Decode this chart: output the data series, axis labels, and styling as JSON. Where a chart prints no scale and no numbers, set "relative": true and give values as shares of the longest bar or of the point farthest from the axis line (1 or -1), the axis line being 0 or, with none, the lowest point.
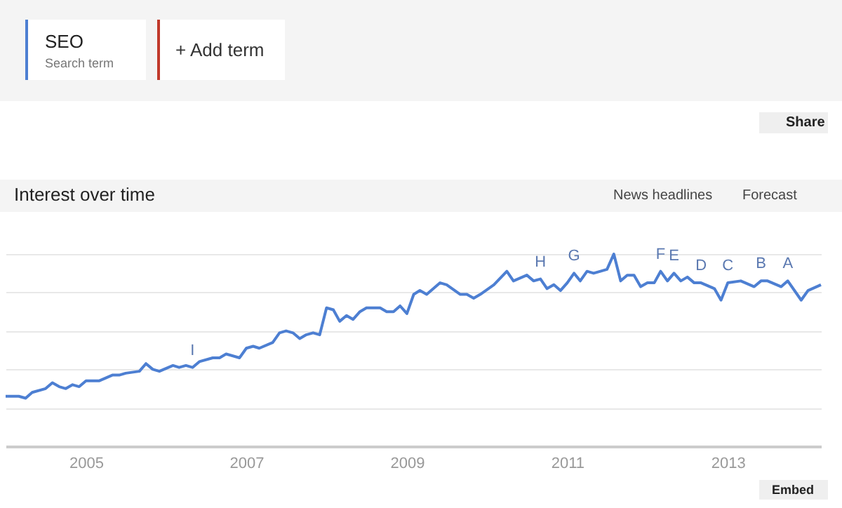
{
  "chart_data": {
    "type": "line",
    "title": "Interest over time",
    "relative": true,
    "legend": "top left",
    "legend_title": "Search term",
    "grid": "y",
    "xlim": [
      "2004-01",
      "2014-03"
    ],
    "xticks": [
      "2005",
      "2007",
      "2009",
      "2011",
      "2013"
    ],
    "x": [
      "2004-01",
      "2004-03",
      "2004-04",
      "2004-05",
      "2004-07",
      "2004-08",
      "2004-09",
      "2004-10",
      "2004-11",
      "2004-12",
      "2005-01",
      "2005-03",
      "2005-05",
      "2005-06",
      "2005-07",
      "2005-09",
      "2005-10",
      "2005-11",
      "2005-12",
      "2006-02",
      "2006-03",
      "2006-04",
      "2006-05",
      "2006-06",
      "2006-08",
      "2006-09",
      "2006-10",
      "2006-12",
      "2007-01",
      "2007-02",
      "2007-03",
      "2007-05",
      "2007-06",
      "2007-07",
      "2007-08",
      "2007-09",
      "2007-10",
      "2007-11",
      "2007-12",
      "2008-01",
      "2008-02",
      "2008-03",
      "2008-04",
      "2008-05",
      "2008-06",
      "2008-07",
      "2008-09",
      "2008-10",
      "2008-11",
      "2008-12",
      "2009-01",
      "2009-02",
      "2009-03",
      "2009-04",
      "2009-06",
      "2009-07",
      "2009-09",
      "2009-10",
      "2009-11",
      "2009-12",
      "2010-02",
      "2010-04",
      "2010-05",
      "2010-07",
      "2010-08",
      "2010-09",
      "2010-10",
      "2010-11",
      "2010-12",
      "2011-01",
      "2011-02",
      "2011-03",
      "2011-04",
      "2011-05",
      "2011-06",
      "2011-07",
      "2011-08",
      "2011-09",
      "2011-10",
      "2011-11",
      "2011-12",
      "2012-01",
      "2012-02",
      "2012-03",
      "2012-04",
      "2012-05",
      "2012-06",
      "2012-07",
      "2012-08",
      "2012-09",
      "2012-11",
      "2012-12",
      "2013-01",
      "2013-03",
      "2013-05",
      "2013-06",
      "2013-07",
      "2013-09",
      "2013-10",
      "2013-12",
      "2014-01",
      "2014-03"
    ],
    "series": [
      {
        "name": "SEO",
        "color": "#4d7fd2",
        "values": [
          0.26,
          0.26,
          0.25,
          0.28,
          0.3,
          0.33,
          0.31,
          0.3,
          0.32,
          0.31,
          0.34,
          0.34,
          0.37,
          0.37,
          0.38,
          0.39,
          0.43,
          0.4,
          0.39,
          0.42,
          0.41,
          0.42,
          0.41,
          0.44,
          0.46,
          0.46,
          0.48,
          0.46,
          0.51,
          0.52,
          0.51,
          0.54,
          0.59,
          0.6,
          0.59,
          0.56,
          0.58,
          0.59,
          0.58,
          0.72,
          0.71,
          0.65,
          0.68,
          0.66,
          0.7,
          0.72,
          0.72,
          0.7,
          0.7,
          0.73,
          0.69,
          0.79,
          0.81,
          0.79,
          0.85,
          0.84,
          0.79,
          0.79,
          0.77,
          0.79,
          0.84,
          0.91,
          0.86,
          0.89,
          0.86,
          0.87,
          0.82,
          0.84,
          0.81,
          0.85,
          0.9,
          0.86,
          0.91,
          0.9,
          0.91,
          0.92,
          1,
          0.86,
          0.89,
          0.89,
          0.83,
          0.85,
          0.85,
          0.91,
          0.86,
          0.9,
          0.86,
          0.88,
          0.85,
          0.85,
          0.82,
          0.76,
          0.85,
          0.86,
          0.83,
          0.86,
          0.86,
          0.83,
          0.86,
          0.76,
          0.81,
          0.84
        ]
      }
    ],
    "annotations": [
      {
        "text": "I",
        "x": "2006-05",
        "y": 0.41
      },
      {
        "text": "H",
        "x": "2010-09",
        "y": 0.87
      },
      {
        "text": "G",
        "x": "2011-02",
        "y": 0.9
      },
      {
        "text": "F",
        "x": "2012-03",
        "y": 0.91
      },
      {
        "text": "E",
        "x": "2012-05",
        "y": 0.9
      },
      {
        "text": "D",
        "x": "2012-09",
        "y": 0.85
      },
      {
        "text": "C",
        "x": "2013-01",
        "y": 0.85
      },
      {
        "text": "B",
        "x": "2013-06",
        "y": 0.86
      },
      {
        "text": "A",
        "x": "2013-10",
        "y": 0.86
      },
      "+ Add term",
      "Share",
      "News headlines",
      "Forecast",
      "Embed"
    ]
  }
}
